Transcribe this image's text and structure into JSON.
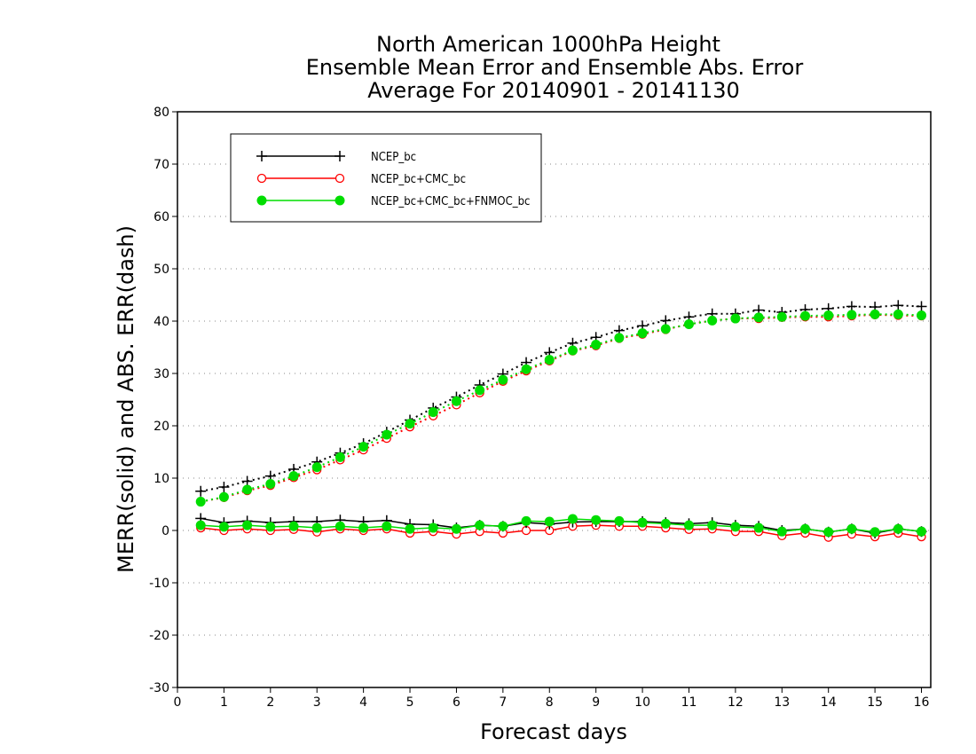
{
  "chart_data": {
    "type": "line",
    "title": [
      "North American 1000hPa Height",
      "Ensemble Mean Error and Ensemble Abs. Error",
      "Average For 20140901 - 20141130"
    ],
    "xlabel": "Forecast days",
    "ylabel": "MERR(solid) and ABS. ERR(dash)",
    "xlim": [
      0,
      16.2
    ],
    "ylim": [
      -30,
      80
    ],
    "xticks": [
      0,
      1,
      2,
      3,
      4,
      5,
      6,
      7,
      8,
      9,
      10,
      11,
      12,
      13,
      14,
      15,
      16
    ],
    "xtick_labels": [
      "0",
      "1",
      "2",
      "3",
      "4",
      "5",
      "6",
      "7",
      "8",
      "9",
      "10",
      "11",
      "12",
      "13",
      "14",
      "15",
      "16"
    ],
    "yticks": [
      -30,
      -20,
      -10,
      0,
      10,
      20,
      30,
      40,
      50,
      60,
      70,
      80
    ],
    "ytick_labels": [
      "-30",
      "-20",
      "-10",
      "0",
      "10",
      "20",
      "30",
      "40",
      "50",
      "60",
      "70",
      "80"
    ],
    "grid": "horizontal-dotted",
    "legend_position": "top-left",
    "x": [
      0.5,
      1,
      1.5,
      2,
      2.5,
      3,
      3.5,
      4,
      4.5,
      5,
      5.5,
      6,
      6.5,
      7,
      7.5,
      8,
      8.5,
      9,
      9.5,
      10,
      10.5,
      11,
      11.5,
      12,
      12.5,
      13,
      13.5,
      14,
      14.5,
      15,
      15.5,
      16
    ],
    "series": [
      {
        "name": "NCEP_bc",
        "color": "#000000",
        "marker": "plus",
        "merr": [
          2.3,
          1.5,
          1.8,
          1.5,
          1.7,
          1.7,
          2.0,
          1.7,
          1.9,
          1.2,
          1.1,
          0.5,
          1.0,
          0.8,
          1.5,
          1.2,
          1.6,
          1.7,
          1.7,
          1.7,
          1.5,
          1.3,
          1.5,
          1.0,
          0.8,
          0.0,
          0.3,
          -0.3,
          0.3,
          -0.5,
          0.3,
          -0.2
        ],
        "abs_err": [
          7.5,
          8.3,
          9.4,
          10.4,
          11.7,
          13.1,
          14.8,
          16.6,
          18.8,
          21.1,
          23.4,
          25.5,
          27.8,
          29.9,
          32.1,
          34.0,
          35.8,
          36.9,
          38.2,
          39.1,
          40.1,
          40.8,
          41.4,
          41.4,
          42.1,
          41.7,
          42.2,
          42.4,
          42.8,
          42.7,
          43.0,
          42.8
        ]
      },
      {
        "name": "NCEP_bc+CMC_bc",
        "color": "#ff0000",
        "marker": "open-circle",
        "merr": [
          0.5,
          0.0,
          0.3,
          0.0,
          0.2,
          -0.3,
          0.3,
          0.0,
          0.3,
          -0.5,
          -0.2,
          -0.7,
          -0.2,
          -0.5,
          0.0,
          0.0,
          0.8,
          1.0,
          0.8,
          0.8,
          0.5,
          0.2,
          0.3,
          -0.2,
          -0.2,
          -1.0,
          -0.5,
          -1.3,
          -0.7,
          -1.2,
          -0.5,
          -1.2
        ],
        "abs_err": [
          5.5,
          6.3,
          7.6,
          8.6,
          10.1,
          11.6,
          13.5,
          15.4,
          17.6,
          19.8,
          21.9,
          24.0,
          26.3,
          28.5,
          30.5,
          32.4,
          34.3,
          35.3,
          36.7,
          37.5,
          38.4,
          39.4,
          40.1,
          40.5,
          40.5,
          40.7,
          40.8,
          40.8,
          41.0,
          41.2,
          41.1,
          41.0
        ]
      },
      {
        "name": "NCEP_bc+CMC_bc+FNMOC_bc",
        "color": "#00dd00",
        "marker": "filled-circle",
        "merr": [
          1.0,
          0.7,
          1.0,
          0.7,
          0.8,
          0.5,
          0.8,
          0.5,
          0.8,
          0.3,
          0.5,
          0.3,
          1.0,
          0.8,
          1.8,
          1.7,
          2.2,
          2.0,
          1.8,
          1.5,
          1.3,
          1.0,
          1.0,
          0.7,
          0.5,
          -0.2,
          0.3,
          -0.3,
          0.3,
          -0.3,
          0.3,
          -0.2
        ],
        "abs_err": [
          5.5,
          6.4,
          7.8,
          8.9,
          10.4,
          12.1,
          14.0,
          16.0,
          18.3,
          20.4,
          22.6,
          24.7,
          26.8,
          28.8,
          30.8,
          32.6,
          34.4,
          35.5,
          36.8,
          37.7,
          38.5,
          39.4,
          40.1,
          40.5,
          40.7,
          40.8,
          41.0,
          41.1,
          41.2,
          41.3,
          41.3,
          41.1
        ]
      }
    ]
  }
}
